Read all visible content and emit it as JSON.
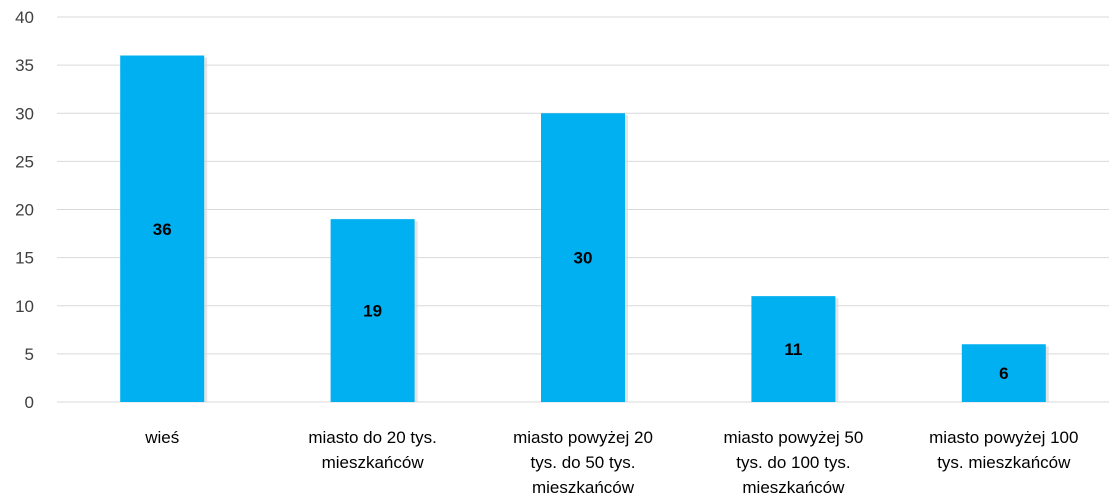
{
  "chart_data": {
    "type": "bar",
    "categories": [
      [
        "wieś"
      ],
      [
        "miasto do 20 tys.",
        "mieszkańców"
      ],
      [
        "miasto powyżej 20",
        "tys. do 50 tys.",
        "mieszkańców"
      ],
      [
        "miasto powyżej 50",
        "tys. do 100 tys.",
        "mieszkańców"
      ],
      [
        "miasto powyżej 100",
        "tys. mieszkańców"
      ]
    ],
    "values": [
      36,
      19,
      30,
      11,
      6
    ],
    "data_labels": [
      "36",
      "19",
      "30",
      "11",
      "6"
    ],
    "ylim": [
      0,
      40
    ],
    "yticks": [
      "0",
      "5",
      "10",
      "15",
      "20",
      "25",
      "30",
      "35",
      "40"
    ],
    "grid": true,
    "legend": "none",
    "bar_color": "#00b0f0",
    "shadow_color": "#d9d9d9"
  }
}
